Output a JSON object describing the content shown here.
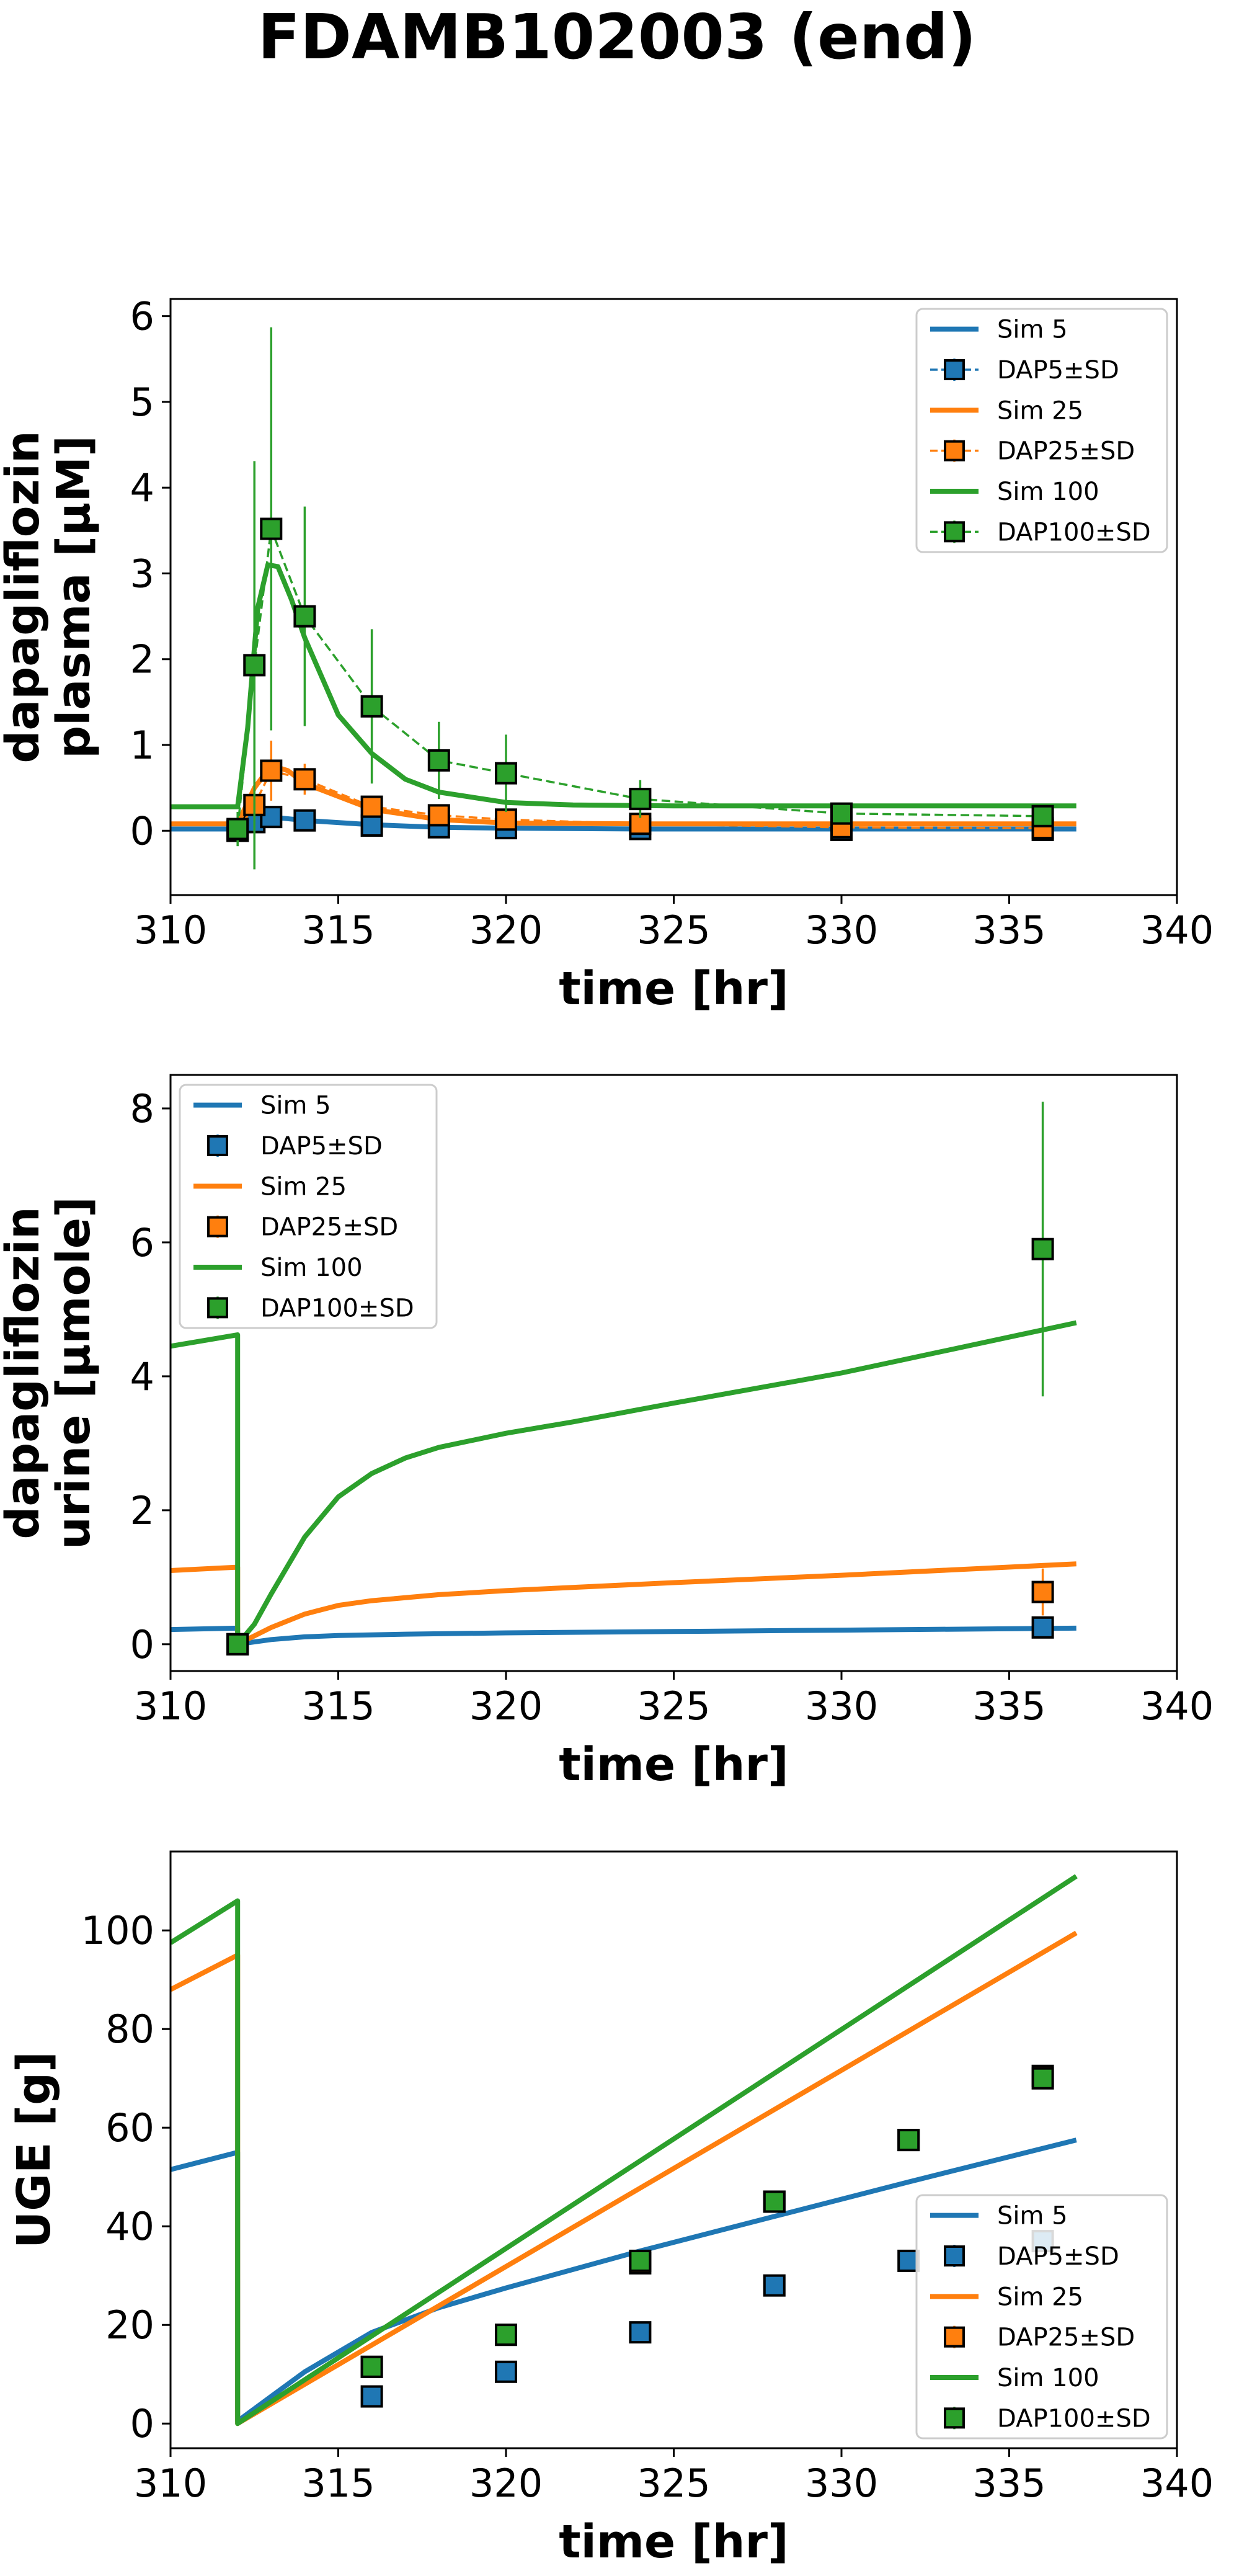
{
  "figure": {
    "title": "FDAMB102003 (end)"
  },
  "colors": {
    "dose5": "#1f77b4",
    "dose25": "#ff7f0e",
    "dose100": "#2ca02c"
  },
  "chart_data": [
    {
      "type": "line",
      "xlabel": "time [hr]",
      "ylabel": [
        "dapagliflozin",
        "plasma [µM]"
      ],
      "xlim": [
        310,
        340
      ],
      "ylim": [
        -0.75,
        6.2
      ],
      "xticks": [
        310,
        315,
        320,
        325,
        330,
        335,
        340
      ],
      "yticks": [
        0,
        1,
        2,
        3,
        4,
        5,
        6
      ],
      "legend": {
        "position": "top-right"
      },
      "series": [
        {
          "name": "Sim 5",
          "kind": "sim",
          "dose": "5",
          "x": [
            310,
            312,
            312.5,
            313,
            314,
            316,
            318,
            320,
            324,
            330,
            337
          ],
          "y": [
            0.02,
            0.02,
            0.12,
            0.16,
            0.12,
            0.07,
            0.04,
            0.03,
            0.02,
            0.02,
            0.02
          ]
        },
        {
          "name": "DAP5±SD",
          "kind": "data",
          "dose": "5",
          "connected": true,
          "x": [
            312,
            312.5,
            313,
            314,
            316,
            318,
            320,
            324,
            330,
            336
          ],
          "y": [
            0.0,
            0.1,
            0.16,
            0.12,
            0.06,
            0.04,
            0.03,
            0.02,
            0.01,
            0.01
          ],
          "sd": [
            0.02,
            0.03,
            0.05,
            0.04,
            0.02,
            0.01,
            0.01,
            0.01,
            0.01,
            0.01
          ]
        },
        {
          "name": "Sim 25",
          "kind": "sim",
          "dose": "25",
          "x": [
            310,
            312,
            312.5,
            313,
            313.5,
            314,
            316,
            318,
            320,
            324,
            330,
            337
          ],
          "y": [
            0.08,
            0.08,
            0.5,
            0.76,
            0.7,
            0.55,
            0.25,
            0.13,
            0.09,
            0.08,
            0.08,
            0.08
          ]
        },
        {
          "name": "DAP25±SD",
          "kind": "data",
          "dose": "25",
          "connected": true,
          "x": [
            312,
            312.5,
            313,
            314,
            316,
            318,
            320,
            324,
            330,
            336
          ],
          "y": [
            0.0,
            0.3,
            0.7,
            0.6,
            0.28,
            0.18,
            0.13,
            0.08,
            0.04,
            0.03
          ],
          "sd": [
            0.03,
            0.2,
            0.35,
            0.18,
            0.1,
            0.07,
            0.05,
            0.03,
            0.02,
            0.01
          ]
        },
        {
          "name": "Sim 100",
          "kind": "sim",
          "dose": "100",
          "x": [
            310,
            312,
            312.3,
            312.6,
            312.9,
            313.2,
            313.6,
            314,
            315,
            316,
            317,
            318,
            320,
            322,
            325,
            330,
            337
          ],
          "y": [
            0.28,
            0.28,
            1.2,
            2.6,
            3.1,
            3.08,
            2.7,
            2.25,
            1.35,
            0.9,
            0.6,
            0.45,
            0.33,
            0.3,
            0.29,
            0.29,
            0.29
          ]
        },
        {
          "name": "DAP100±SD",
          "kind": "data",
          "dose": "100",
          "connected": true,
          "x": [
            312,
            312.5,
            313,
            314,
            316,
            318,
            320,
            324,
            330,
            336
          ],
          "y": [
            0.02,
            1.93,
            3.52,
            2.5,
            1.45,
            0.82,
            0.67,
            0.37,
            0.2,
            0.17
          ],
          "sd": [
            0.2,
            2.38,
            2.35,
            1.28,
            0.9,
            0.45,
            0.45,
            0.22,
            0.12,
            0.1
          ]
        }
      ]
    },
    {
      "type": "line",
      "xlabel": "time [hr]",
      "ylabel": [
        "dapagliflozin",
        "urine [µmole]"
      ],
      "xlim": [
        310,
        340
      ],
      "ylim": [
        -0.4,
        8.5
      ],
      "xticks": [
        310,
        315,
        320,
        325,
        330,
        335,
        340
      ],
      "yticks": [
        0,
        2,
        4,
        6,
        8
      ],
      "legend": {
        "position": "top-left"
      },
      "series": [
        {
          "name": "Sim 5",
          "kind": "sim",
          "dose": "5",
          "x": [
            310,
            312,
            312,
            313,
            314,
            315,
            317,
            320,
            325,
            330,
            337
          ],
          "y": [
            0.22,
            0.24,
            0.0,
            0.07,
            0.11,
            0.13,
            0.15,
            0.17,
            0.19,
            0.21,
            0.24
          ]
        },
        {
          "name": "DAP5±SD",
          "kind": "data",
          "dose": "5",
          "connected": false,
          "x": [
            312,
            336
          ],
          "y": [
            0.0,
            0.25
          ],
          "sd": [
            0.02,
            0.05
          ]
        },
        {
          "name": "Sim 25",
          "kind": "sim",
          "dose": "25",
          "x": [
            310,
            312,
            312,
            313,
            314,
            315,
            316,
            318,
            320,
            325,
            330,
            337
          ],
          "y": [
            1.1,
            1.15,
            0.0,
            0.25,
            0.45,
            0.58,
            0.65,
            0.74,
            0.8,
            0.92,
            1.03,
            1.2
          ]
        },
        {
          "name": "DAP25±SD",
          "kind": "data",
          "dose": "25",
          "connected": false,
          "x": [
            312,
            336
          ],
          "y": [
            0.0,
            0.78
          ],
          "sd": [
            0.02,
            0.35
          ]
        },
        {
          "name": "Sim 100",
          "kind": "sim",
          "dose": "100",
          "x": [
            310,
            312,
            312,
            312.5,
            313,
            314,
            315,
            316,
            317,
            318,
            320,
            322,
            325,
            330,
            337
          ],
          "y": [
            4.45,
            4.62,
            0.0,
            0.3,
            0.75,
            1.6,
            2.2,
            2.55,
            2.78,
            2.94,
            3.15,
            3.32,
            3.6,
            4.05,
            4.8
          ],
          "jump_at": 312
        },
        {
          "name": "DAP100±SD",
          "kind": "data",
          "dose": "100",
          "connected": false,
          "x": [
            312,
            336
          ],
          "y": [
            0.0,
            5.9
          ],
          "sd": [
            0.05,
            2.2
          ]
        }
      ]
    },
    {
      "type": "line",
      "xlabel": "time [hr]",
      "ylabel": [
        "UGE [g]"
      ],
      "xlim": [
        310,
        340
      ],
      "ylim": [
        -5,
        116
      ],
      "xticks": [
        310,
        315,
        320,
        325,
        330,
        335,
        340
      ],
      "yticks": [
        0,
        20,
        40,
        60,
        80,
        100
      ],
      "legend": {
        "position": "bottom-right"
      },
      "series": [
        {
          "name": "Sim 5",
          "kind": "sim",
          "dose": "5",
          "x": [
            310,
            312,
            312,
            313,
            314,
            316,
            318,
            320,
            324,
            328,
            332,
            337
          ],
          "y": [
            51.5,
            55,
            0.5,
            5.5,
            10.5,
            18.5,
            23.5,
            27.5,
            35,
            42,
            49,
            57.5
          ]
        },
        {
          "name": "DAP5±SD",
          "kind": "data",
          "dose": "5",
          "connected": false,
          "x": [
            316,
            320,
            324,
            328,
            332,
            336
          ],
          "y": [
            5.5,
            10.5,
            18.5,
            28,
            33,
            37
          ],
          "sd": [
            0,
            0,
            0,
            0,
            0,
            0
          ]
        },
        {
          "name": "Sim 25",
          "kind": "sim",
          "dose": "25",
          "x": [
            310,
            312,
            312,
            337
          ],
          "y": [
            88,
            95,
            0,
            99.5
          ]
        },
        {
          "name": "DAP25±SD",
          "kind": "data",
          "dose": "25",
          "connected": false,
          "x": [
            316,
            320,
            324,
            328,
            332,
            336
          ],
          "y": [
            11.5,
            18,
            32.5,
            45,
            57.5,
            70.5
          ],
          "sd": [
            0,
            0,
            0,
            0,
            0,
            0
          ]
        },
        {
          "name": "Sim 100",
          "kind": "sim",
          "dose": "100",
          "x": [
            310,
            312,
            312,
            337
          ],
          "y": [
            97.5,
            106,
            0,
            111
          ]
        },
        {
          "name": "DAP100±SD",
          "kind": "data",
          "dose": "100",
          "connected": false,
          "x": [
            316,
            320,
            324,
            328,
            332,
            336
          ],
          "y": [
            11.5,
            18,
            33,
            45,
            57.5,
            70
          ],
          "sd": [
            0,
            0,
            0,
            0,
            0,
            0
          ]
        }
      ]
    }
  ]
}
